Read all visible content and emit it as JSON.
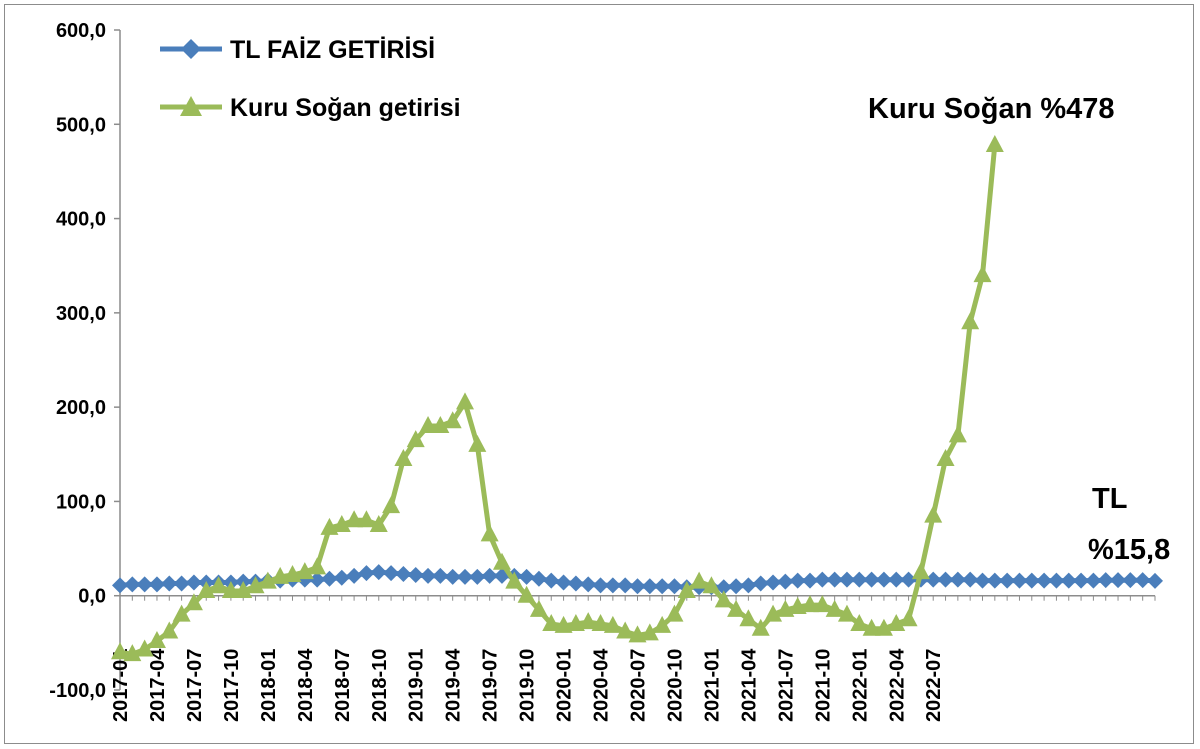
{
  "chart_data": {
    "type": "line",
    "ylim": [
      -100,
      600
    ],
    "y_ticks": [
      "600,0",
      "500,0",
      "400,0",
      "300,0",
      "200,0",
      "100,0",
      "0,0",
      "-100,0"
    ],
    "y_tick_values": [
      600,
      500,
      400,
      300,
      200,
      100,
      0,
      -100
    ],
    "x_tick_labels": [
      "2017-01",
      "2017-04",
      "2017-07",
      "2017-10",
      "2018-01",
      "2018-04",
      "2018-07",
      "2018-10",
      "2019-01",
      "2019-04",
      "2019-07",
      "2019-10",
      "2020-01",
      "2020-04",
      "2020-07",
      "2020-10",
      "2021-01",
      "2021-04",
      "2021-07",
      "2021-10",
      "2022-01",
      "2022-04",
      "2022-07"
    ],
    "grid": false,
    "legend_position": "top-left",
    "series": [
      {
        "name": "TL FAİZ GETİRİSİ",
        "color": "#4a7ebb",
        "marker": "diamond",
        "values": [
          11,
          12,
          12,
          12,
          13,
          13,
          14,
          14,
          14,
          14,
          15,
          15,
          16,
          16,
          17,
          17,
          17,
          18,
          19,
          21,
          24,
          25,
          24,
          23,
          22,
          21,
          21,
          20,
          20,
          20,
          21,
          21,
          21,
          20,
          18,
          16,
          14,
          13,
          12,
          11,
          11,
          11,
          10,
          10,
          10,
          10,
          9,
          9,
          9,
          9,
          10,
          11,
          13,
          14,
          15,
          16,
          16,
          17,
          17,
          17,
          17,
          17,
          17,
          17,
          17,
          17,
          17,
          17,
          17,
          17,
          16,
          16,
          16,
          16,
          16,
          16,
          16,
          16,
          16,
          16,
          16.5,
          16.5,
          16.5,
          16.5,
          15.8
        ]
      },
      {
        "name": "Kuru Soğan getirisi",
        "color": "#9bbb59",
        "marker": "triangle",
        "values": [
          -60,
          -62,
          -57,
          -48,
          -38,
          -20,
          -8,
          5,
          10,
          5,
          5,
          10,
          15,
          20,
          22,
          25,
          30,
          72,
          75,
          80,
          80,
          75,
          95,
          145,
          165,
          180,
          180,
          185,
          205,
          160,
          65,
          35,
          15,
          0,
          -15,
          -30,
          -32,
          -30,
          -28,
          -30,
          -32,
          -38,
          -42,
          -40,
          -32,
          -20,
          5,
          15,
          10,
          -5,
          -15,
          -25,
          -35,
          -20,
          -15,
          -12,
          -10,
          -10,
          -15,
          -20,
          -30,
          -35,
          -35,
          -30,
          -25,
          25,
          85,
          145,
          170,
          290,
          340,
          478
        ]
      }
    ],
    "annotations": {
      "onion_label": "Kuru Soğan %478",
      "tl_label_line1": "TL",
      "tl_label_line2": "%15,8"
    }
  }
}
